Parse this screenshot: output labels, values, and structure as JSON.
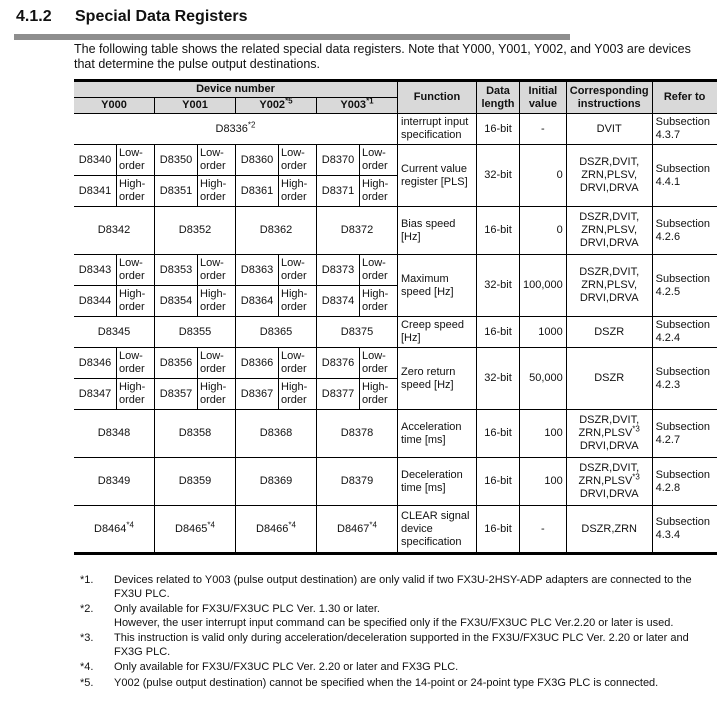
{
  "section": {
    "number": "4.1.2",
    "title": "Special Data Registers"
  },
  "intro": "The following table shows the related special data registers.  Note that Y000, Y001, Y002, and Y003 are devices that determine the pulse output destinations.",
  "table": {
    "headers": {
      "device_number": "Device number",
      "y": [
        {
          "label": "Y000",
          "sup": ""
        },
        {
          "label": "Y001",
          "sup": ""
        },
        {
          "label": "Y002",
          "sup": "*5"
        },
        {
          "label": "Y003",
          "sup": "*1"
        }
      ],
      "function": "Function",
      "data_length": "Data length",
      "initial_value": "Initial value",
      "instructions": "Corresponding instructions",
      "refer": "Refer to"
    },
    "low_label": "Low-order",
    "high_label": "High-order",
    "rows": [
      {
        "type": "merged",
        "device": "D8336",
        "sup": "*2",
        "function": "interrupt input specification",
        "length": "16-bit",
        "initial": "-",
        "instructions": [
          "DVIT"
        ],
        "refer": "Subsection 4.3.7"
      },
      {
        "type": "pair",
        "low": [
          "D8340",
          "D8350",
          "D8360",
          "D8370"
        ],
        "high": [
          "D8341",
          "D8351",
          "D8361",
          "D8371"
        ],
        "function": "Current value register [PLS]",
        "length": "32-bit",
        "initial": "0",
        "instructions": [
          "DSZR,DVIT,",
          "ZRN,PLSV,",
          "DRVI,DRVA"
        ],
        "refer": "Subsection 4.4.1"
      },
      {
        "type": "single",
        "devices": [
          "D8342",
          "D8352",
          "D8362",
          "D8372"
        ],
        "function": "Bias speed [Hz]",
        "length": "16-bit",
        "initial": "0",
        "instructions": [
          "DSZR,DVIT,",
          "ZRN,PLSV,",
          "DRVI,DRVA"
        ],
        "refer": "Subsection 4.2.6"
      },
      {
        "type": "pair",
        "low": [
          "D8343",
          "D8353",
          "D8363",
          "D8373"
        ],
        "high": [
          "D8344",
          "D8354",
          "D8364",
          "D8374"
        ],
        "function": "Maximum speed [Hz]",
        "length": "32-bit",
        "initial": "100,000",
        "instructions": [
          "DSZR,DVIT,",
          "ZRN,PLSV,",
          "DRVI,DRVA"
        ],
        "refer": "Subsection 4.2.5"
      },
      {
        "type": "single",
        "devices": [
          "D8345",
          "D8355",
          "D8365",
          "D8375"
        ],
        "function": "Creep speed [Hz]",
        "length": "16-bit",
        "initial": "1000",
        "instructions": [
          "DSZR"
        ],
        "refer": "Subsection 4.2.4"
      },
      {
        "type": "pair",
        "low": [
          "D8346",
          "D8356",
          "D8366",
          "D8376"
        ],
        "high": [
          "D8347",
          "D8357",
          "D8367",
          "D8377"
        ],
        "function": "Zero return speed [Hz]",
        "length": "32-bit",
        "initial": "50,000",
        "instructions": [
          "DSZR"
        ],
        "refer": "Subsection 4.2.3"
      },
      {
        "type": "single",
        "devices": [
          "D8348",
          "D8358",
          "D8368",
          "D8378"
        ],
        "function": "Acceleration time [ms]",
        "length": "16-bit",
        "initial": "100",
        "instructions": [
          "DSZR,DVIT,",
          "ZRN,PLSV",
          "DRVI,DRVA"
        ],
        "instr_sup": "*3",
        "refer": "Subsection 4.2.7"
      },
      {
        "type": "single",
        "devices": [
          "D8349",
          "D8359",
          "D8369",
          "D8379"
        ],
        "function": "Deceleration time [ms]",
        "length": "16-bit",
        "initial": "100",
        "instructions": [
          "DSZR,DVIT,",
          "ZRN,PLSV",
          "DRVI,DRVA"
        ],
        "instr_sup": "*3",
        "refer": "Subsection 4.2.8"
      },
      {
        "type": "single",
        "devices": [
          "D8464",
          "D8465",
          "D8466",
          "D8467"
        ],
        "dev_sup": "*4",
        "function": "CLEAR signal device specification",
        "length": "16-bit",
        "initial": "-",
        "instructions": [
          "DSZR,ZRN"
        ],
        "refer": "Subsection 4.3.4"
      }
    ]
  },
  "notes": [
    {
      "mark": "*1.",
      "text": "Devices related to Y003 (pulse output destination) are only valid if two FX3U-2HSY-ADP adapters are connected to the FX3U PLC."
    },
    {
      "mark": "*2.",
      "text": "Only available for FX3U/FX3UC PLC Ver. 1.30 or later.",
      "text2": "However, the user interrupt input command can be specified only if the FX3U/FX3UC PLC Ver.2.20 or later is used."
    },
    {
      "mark": "*3.",
      "text": "This instruction is valid only during acceleration/deceleration supported in the FX3U/FX3UC PLC Ver. 2.20 or later and FX3G PLC."
    },
    {
      "mark": "*4.",
      "text": "Only available for FX3U/FX3UC PLC Ver. 2.20 or later and FX3G PLC."
    },
    {
      "mark": "*5.",
      "text": "Y002 (pulse output destination) cannot be specified when the 14-point or 24-point type FX3G PLC is connected."
    }
  ]
}
